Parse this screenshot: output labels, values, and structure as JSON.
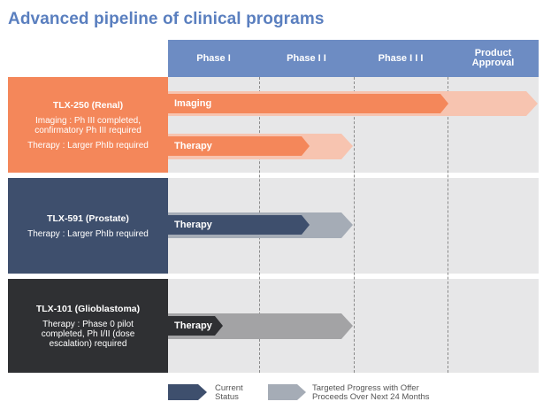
{
  "title": "Advanced pipeline of clinical programs",
  "phases": [
    "Phase I",
    "Phase I I",
    "Phase I I I",
    "Product Approval"
  ],
  "programs": [
    {
      "name": "TLX-250 (Renal)",
      "descriptions": [
        "Imaging : Ph III completed, confirmatory Ph III required",
        "Therapy : Larger PhIb required"
      ],
      "color": "#f4875a",
      "bars": [
        {
          "label": "Imaging",
          "current_phase": "Phase I I I",
          "target_phase": "Product Approval"
        },
        {
          "label": "Therapy",
          "current_phase": "Phase I I",
          "target_phase": "Phase I I"
        }
      ]
    },
    {
      "name": "TLX-591 (Prostate)",
      "descriptions": [
        "Therapy : Larger PhIb required"
      ],
      "color": "#3e4f6d",
      "bars": [
        {
          "label": "Therapy",
          "current_phase": "Phase I I",
          "target_phase": "Phase I I"
        }
      ]
    },
    {
      "name": "TLX-101 (Glioblastoma)",
      "descriptions": [
        "Therapy : Phase 0 pilot completed, Ph I/II (dose escalation) required"
      ],
      "color": "#2f3033",
      "bars": [
        {
          "label": "Therapy",
          "current_phase": "Phase I",
          "target_phase": "Phase I I"
        }
      ]
    }
  ],
  "legend": {
    "current": "Current Status",
    "targeted": "Targeted Progress with Offer Proceeds Over Next 24 Months"
  },
  "colors": {
    "header": "#6d8cc3",
    "title": "#5a7fbf",
    "orange_current": "#f4875a",
    "orange_target": "#f7c4b0",
    "navy_current": "#3e4f6d",
    "navy_target": "#a5acb6",
    "dark_current": "#2f3033",
    "dark_target": "#a3a3a5",
    "row_bg": "#e7e7e8"
  }
}
